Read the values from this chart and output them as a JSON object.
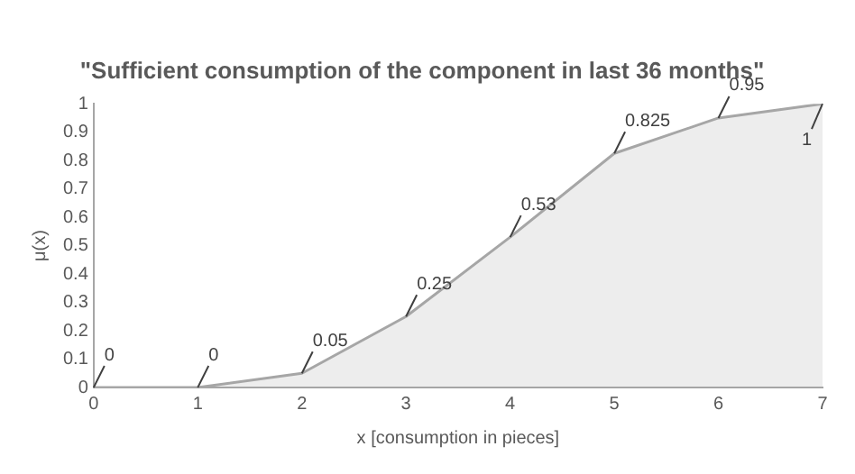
{
  "chart_data": {
    "type": "area",
    "title": "\"Sufficient consumption of the component in last 36 months\"",
    "xlabel": "x [consumption in pieces]",
    "ylabel": "μ(x)",
    "x": [
      0,
      1,
      2,
      3,
      4,
      5,
      6,
      7
    ],
    "series": [
      {
        "color": "#a6a6a6",
        "values": [
          0,
          0,
          0.05,
          0.25,
          0.53,
          0.825,
          0.95,
          1
        ]
      }
    ],
    "xlim": [
      0,
      7
    ],
    "xticks": [
      0,
      1,
      2,
      3,
      4,
      5,
      6,
      7
    ],
    "ylim": [
      0,
      1
    ],
    "yticks": [
      0,
      0.1,
      0.2,
      0.3,
      0.4,
      0.5,
      0.6,
      0.7,
      0.8,
      0.9,
      1
    ],
    "grid": false,
    "legend": false,
    "data_labels": true,
    "marker": "none"
  }
}
